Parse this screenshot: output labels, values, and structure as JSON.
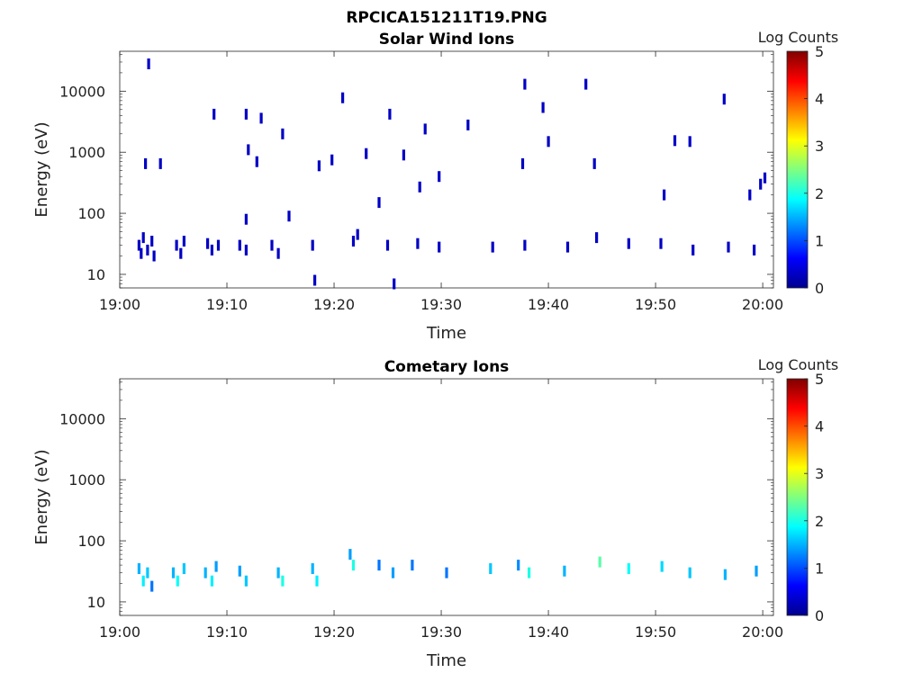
{
  "figure": {
    "title": "RPCICA151211T19.PNG"
  },
  "colors": {
    "axis": "#262626",
    "background": "#ffffff"
  },
  "chart_data": [
    {
      "type": "heatmap",
      "title": "Solar Wind Ions",
      "xlabel": "Time",
      "ylabel": "Energy (eV)",
      "y_scale": "log",
      "ylim": [
        6,
        45000
      ],
      "xlim": [
        "19:00",
        "20:01"
      ],
      "x_ticks": [
        "19:00",
        "19:10",
        "19:20",
        "19:30",
        "19:40",
        "19:50",
        "20:00"
      ],
      "y_ticks": [
        "10",
        "100",
        "1000",
        "10000"
      ],
      "colorbar": {
        "label": "Log Counts",
        "ticks": [
          "0",
          "1",
          "2",
          "3",
          "4",
          "5"
        ],
        "range": [
          0,
          5
        ],
        "colormap": "jet"
      },
      "points": [
        {
          "t": 1.8,
          "e": 30,
          "c": 0.3
        },
        {
          "t": 2.0,
          "e": 22,
          "c": 0.3
        },
        {
          "t": 2.2,
          "e": 40,
          "c": 0.3
        },
        {
          "t": 2.6,
          "e": 25,
          "c": 0.3
        },
        {
          "t": 3.0,
          "e": 35,
          "c": 0.3
        },
        {
          "t": 3.2,
          "e": 20,
          "c": 0.3
        },
        {
          "t": 5.3,
          "e": 30,
          "c": 0.3
        },
        {
          "t": 5.7,
          "e": 22,
          "c": 0.3
        },
        {
          "t": 6.0,
          "e": 35,
          "c": 0.3
        },
        {
          "t": 8.2,
          "e": 32,
          "c": 0.3
        },
        {
          "t": 8.6,
          "e": 25,
          "c": 0.3
        },
        {
          "t": 9.2,
          "e": 30,
          "c": 0.3
        },
        {
          "t": 11.2,
          "e": 30,
          "c": 0.3
        },
        {
          "t": 11.8,
          "e": 25,
          "c": 0.3
        },
        {
          "t": 14.2,
          "e": 30,
          "c": 0.3
        },
        {
          "t": 14.8,
          "e": 22,
          "c": 0.3
        },
        {
          "t": 18.0,
          "e": 30,
          "c": 0.3
        },
        {
          "t": 18.2,
          "e": 8,
          "c": 0.3
        },
        {
          "t": 21.8,
          "e": 35,
          "c": 0.3
        },
        {
          "t": 22.2,
          "e": 45,
          "c": 0.3
        },
        {
          "t": 25.0,
          "e": 30,
          "c": 0.3
        },
        {
          "t": 25.6,
          "e": 7,
          "c": 0.3
        },
        {
          "t": 27.8,
          "e": 32,
          "c": 0.3
        },
        {
          "t": 29.8,
          "e": 28,
          "c": 0.3
        },
        {
          "t": 34.8,
          "e": 28,
          "c": 0.3
        },
        {
          "t": 37.8,
          "e": 30,
          "c": 0.3
        },
        {
          "t": 41.8,
          "e": 28,
          "c": 0.3
        },
        {
          "t": 44.5,
          "e": 40,
          "c": 0.3
        },
        {
          "t": 47.5,
          "e": 32,
          "c": 0.3
        },
        {
          "t": 50.5,
          "e": 32,
          "c": 0.3
        },
        {
          "t": 53.5,
          "e": 25,
          "c": 0.3
        },
        {
          "t": 56.8,
          "e": 28,
          "c": 0.3
        },
        {
          "t": 59.2,
          "e": 25,
          "c": 0.3
        },
        {
          "t": 2.4,
          "e": 650,
          "c": 0.3
        },
        {
          "t": 2.7,
          "e": 28000,
          "c": 0.3
        },
        {
          "t": 3.8,
          "e": 650,
          "c": 0.3
        },
        {
          "t": 8.8,
          "e": 4200,
          "c": 0.3
        },
        {
          "t": 11.8,
          "e": 4200,
          "c": 0.3
        },
        {
          "t": 13.2,
          "e": 3600,
          "c": 0.3
        },
        {
          "t": 15.2,
          "e": 2000,
          "c": 0.3
        },
        {
          "t": 20.8,
          "e": 7800,
          "c": 0.3
        },
        {
          "t": 25.2,
          "e": 4200,
          "c": 0.3
        },
        {
          "t": 28.5,
          "e": 2400,
          "c": 0.3
        },
        {
          "t": 32.5,
          "e": 2800,
          "c": 0.3
        },
        {
          "t": 37.8,
          "e": 13000,
          "c": 0.3
        },
        {
          "t": 39.5,
          "e": 5400,
          "c": 0.3
        },
        {
          "t": 43.5,
          "e": 13000,
          "c": 0.3
        },
        {
          "t": 56.4,
          "e": 7400,
          "c": 0.3
        },
        {
          "t": 12.0,
          "e": 1100,
          "c": 0.3
        },
        {
          "t": 12.8,
          "e": 700,
          "c": 0.3
        },
        {
          "t": 18.6,
          "e": 600,
          "c": 0.3
        },
        {
          "t": 19.8,
          "e": 750,
          "c": 0.3
        },
        {
          "t": 23.0,
          "e": 950,
          "c": 0.3
        },
        {
          "t": 26.5,
          "e": 900,
          "c": 0.3
        },
        {
          "t": 28.0,
          "e": 270,
          "c": 0.3
        },
        {
          "t": 29.8,
          "e": 400,
          "c": 0.3
        },
        {
          "t": 37.6,
          "e": 650,
          "c": 0.3
        },
        {
          "t": 40.0,
          "e": 1500,
          "c": 0.3
        },
        {
          "t": 44.3,
          "e": 650,
          "c": 0.3
        },
        {
          "t": 50.8,
          "e": 200,
          "c": 0.3
        },
        {
          "t": 51.8,
          "e": 1550,
          "c": 0.3
        },
        {
          "t": 53.2,
          "e": 1500,
          "c": 0.3
        },
        {
          "t": 58.8,
          "e": 200,
          "c": 0.3
        },
        {
          "t": 59.8,
          "e": 300,
          "c": 0.3
        },
        {
          "t": 60.2,
          "e": 380,
          "c": 0.3
        },
        {
          "t": 24.2,
          "e": 150,
          "c": 0.3
        },
        {
          "t": 15.8,
          "e": 90,
          "c": 0.3
        },
        {
          "t": 11.8,
          "e": 80,
          "c": 0.3
        }
      ]
    },
    {
      "type": "heatmap",
      "title": "Cometary Ions",
      "xlabel": "Time",
      "ylabel": "Energy (eV)",
      "y_scale": "log",
      "ylim": [
        6,
        45000
      ],
      "xlim": [
        "19:00",
        "20:01"
      ],
      "x_ticks": [
        "19:00",
        "19:10",
        "19:20",
        "19:30",
        "19:40",
        "19:50",
        "20:00"
      ],
      "y_ticks": [
        "10",
        "100",
        "1000",
        "10000"
      ],
      "colorbar": {
        "label": "Log Counts",
        "ticks": [
          "0",
          "1",
          "2",
          "3",
          "4",
          "5"
        ],
        "range": [
          0,
          5
        ],
        "colormap": "jet"
      },
      "points": [
        {
          "t": 1.8,
          "e": 35,
          "c": 1.5
        },
        {
          "t": 2.2,
          "e": 22,
          "c": 1.8
        },
        {
          "t": 2.6,
          "e": 30,
          "c": 1.6
        },
        {
          "t": 3.0,
          "e": 18,
          "c": 1.2
        },
        {
          "t": 5.0,
          "e": 30,
          "c": 1.5
        },
        {
          "t": 5.4,
          "e": 22,
          "c": 1.9
        },
        {
          "t": 6.0,
          "e": 35,
          "c": 1.6
        },
        {
          "t": 8.0,
          "e": 30,
          "c": 1.5
        },
        {
          "t": 8.6,
          "e": 22,
          "c": 1.8
        },
        {
          "t": 9.0,
          "e": 38,
          "c": 1.4
        },
        {
          "t": 11.2,
          "e": 32,
          "c": 1.4
        },
        {
          "t": 11.8,
          "e": 22,
          "c": 1.6
        },
        {
          "t": 14.8,
          "e": 30,
          "c": 1.5
        },
        {
          "t": 15.2,
          "e": 22,
          "c": 2.0
        },
        {
          "t": 18.0,
          "e": 35,
          "c": 1.5
        },
        {
          "t": 18.4,
          "e": 22,
          "c": 1.8
        },
        {
          "t": 21.5,
          "e": 60,
          "c": 1.4
        },
        {
          "t": 21.8,
          "e": 40,
          "c": 2.0
        },
        {
          "t": 24.2,
          "e": 40,
          "c": 1.2
        },
        {
          "t": 25.5,
          "e": 30,
          "c": 1.4
        },
        {
          "t": 27.3,
          "e": 40,
          "c": 1.2
        },
        {
          "t": 30.5,
          "e": 30,
          "c": 1.2
        },
        {
          "t": 34.6,
          "e": 35,
          "c": 1.6
        },
        {
          "t": 37.2,
          "e": 40,
          "c": 1.3
        },
        {
          "t": 38.2,
          "e": 30,
          "c": 2.0
        },
        {
          "t": 41.5,
          "e": 32,
          "c": 1.5
        },
        {
          "t": 44.8,
          "e": 45,
          "c": 2.3
        },
        {
          "t": 47.5,
          "e": 35,
          "c": 1.9
        },
        {
          "t": 50.6,
          "e": 38,
          "c": 1.7
        },
        {
          "t": 53.2,
          "e": 30,
          "c": 1.6
        },
        {
          "t": 56.5,
          "e": 28,
          "c": 1.5
        },
        {
          "t": 59.4,
          "e": 32,
          "c": 1.4
        }
      ]
    }
  ]
}
